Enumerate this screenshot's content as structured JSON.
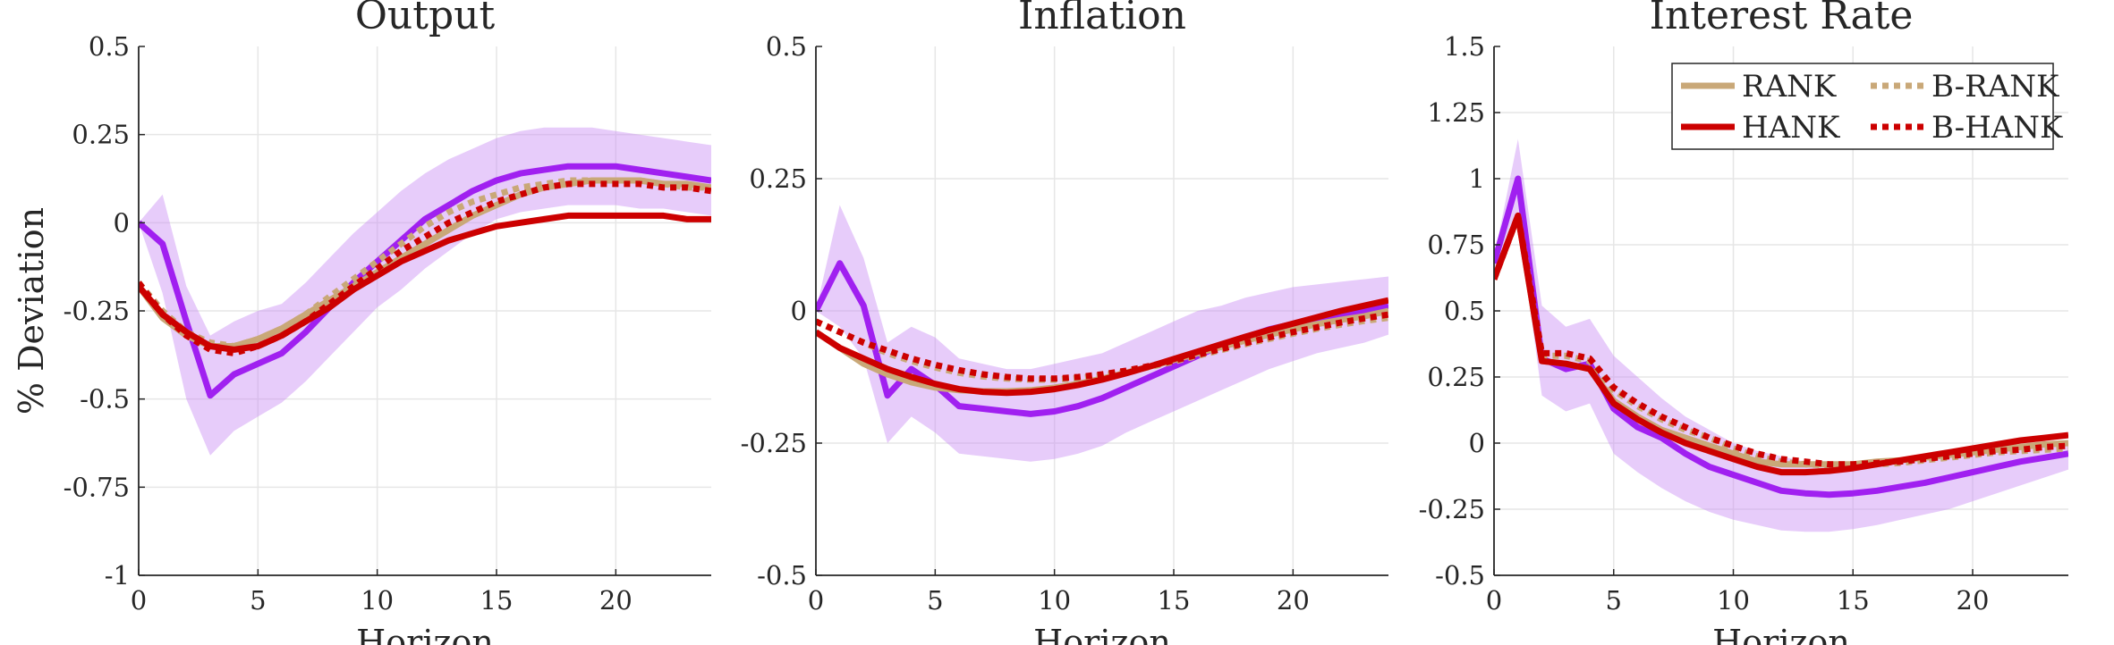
{
  "chart_data": [
    {
      "type": "line",
      "title": "Output",
      "xlabel": "Horizon",
      "ylabel": "% Deviation",
      "xlim": [
        0,
        24
      ],
      "ylim": [
        -1,
        0.5
      ],
      "xticks": [
        0,
        5,
        10,
        15,
        20
      ],
      "xtick_labels": [
        "0",
        "5",
        "10",
        "15",
        "20"
      ],
      "yticks": [
        -1,
        -0.75,
        -0.5,
        -0.25,
        0,
        0.25,
        0.5
      ],
      "ytick_labels": [
        "-1",
        "-0.75",
        "-0.5",
        "-0.25",
        "0",
        "0.25",
        "0.5"
      ],
      "grid": true,
      "x": [
        0,
        1,
        2,
        3,
        4,
        5,
        6,
        7,
        8,
        9,
        10,
        11,
        12,
        13,
        14,
        15,
        16,
        17,
        18,
        19,
        20,
        21,
        22,
        23,
        24
      ],
      "series": [
        {
          "key": "empirical",
          "style": "solid",
          "color": "#a020f0",
          "values": [
            0,
            -0.06,
            -0.28,
            -0.49,
            -0.43,
            -0.4,
            -0.37,
            -0.31,
            -0.24,
            -0.17,
            -0.11,
            -0.05,
            0.01,
            0.05,
            0.09,
            0.12,
            0.14,
            0.15,
            0.16,
            0.16,
            0.16,
            0.15,
            0.14,
            0.13,
            0.12
          ]
        },
        {
          "key": "band",
          "type": "area",
          "color": "#c98ef5",
          "upper": [
            0,
            0.08,
            -0.18,
            -0.32,
            -0.28,
            -0.25,
            -0.23,
            -0.17,
            -0.1,
            -0.03,
            0.03,
            0.09,
            0.14,
            0.18,
            0.21,
            0.24,
            0.26,
            0.27,
            0.27,
            0.27,
            0.26,
            0.25,
            0.24,
            0.23,
            0.22
          ],
          "lower": [
            0,
            -0.2,
            -0.5,
            -0.66,
            -0.59,
            -0.55,
            -0.51,
            -0.45,
            -0.38,
            -0.31,
            -0.24,
            -0.19,
            -0.13,
            -0.08,
            -0.03,
            0.01,
            0.03,
            0.04,
            0.05,
            0.05,
            0.05,
            0.04,
            0.04,
            0.03,
            0.02
          ]
        },
        {
          "name": "RANK",
          "style": "solid",
          "color": "#c9a878",
          "values": [
            -0.18,
            -0.27,
            -0.32,
            -0.35,
            -0.35,
            -0.33,
            -0.3,
            -0.26,
            -0.22,
            -0.18,
            -0.14,
            -0.1,
            -0.06,
            -0.02,
            0.02,
            0.05,
            0.08,
            0.1,
            0.11,
            0.12,
            0.12,
            0.12,
            0.11,
            0.11,
            0.1
          ]
        },
        {
          "name": "B-RANK",
          "style": "dotted",
          "color": "#c9a878",
          "values": [
            -0.17,
            -0.25,
            -0.31,
            -0.34,
            -0.35,
            -0.33,
            -0.3,
            -0.26,
            -0.21,
            -0.16,
            -0.11,
            -0.06,
            -0.01,
            0.03,
            0.06,
            0.08,
            0.1,
            0.11,
            0.12,
            0.12,
            0.12,
            0.12,
            0.11,
            0.1,
            0.1
          ]
        },
        {
          "name": "HANK",
          "style": "solid",
          "color": "#cc0000",
          "values": [
            -0.18,
            -0.26,
            -0.31,
            -0.35,
            -0.36,
            -0.35,
            -0.32,
            -0.28,
            -0.24,
            -0.19,
            -0.15,
            -0.11,
            -0.08,
            -0.05,
            -0.03,
            -0.01,
            0,
            0.01,
            0.02,
            0.02,
            0.02,
            0.02,
            0.02,
            0.01,
            0.01
          ]
        },
        {
          "name": "B-HANK",
          "style": "dotted",
          "color": "#cc0000",
          "values": [
            -0.17,
            -0.26,
            -0.32,
            -0.36,
            -0.37,
            -0.35,
            -0.32,
            -0.28,
            -0.23,
            -0.18,
            -0.13,
            -0.08,
            -0.04,
            0,
            0.03,
            0.06,
            0.08,
            0.1,
            0.11,
            0.11,
            0.11,
            0.11,
            0.1,
            0.1,
            0.09
          ]
        }
      ]
    },
    {
      "type": "line",
      "title": "Inflation",
      "xlabel": "Horizon",
      "ylabel": "",
      "xlim": [
        0,
        24
      ],
      "ylim": [
        -0.5,
        0.5
      ],
      "xticks": [
        0,
        5,
        10,
        15,
        20
      ],
      "xtick_labels": [
        "0",
        "5",
        "10",
        "15",
        "20"
      ],
      "yticks": [
        -0.5,
        -0.25,
        0,
        0.25,
        0.5
      ],
      "ytick_labels": [
        "-0.5",
        "-0.25",
        "0",
        "0.25",
        "0.5"
      ],
      "grid": true,
      "x": [
        0,
        1,
        2,
        3,
        4,
        5,
        6,
        7,
        8,
        9,
        10,
        11,
        12,
        13,
        14,
        15,
        16,
        17,
        18,
        19,
        20,
        21,
        22,
        23,
        24
      ],
      "series": [
        {
          "key": "empirical",
          "style": "solid",
          "color": "#a020f0",
          "values": [
            0,
            0.09,
            0.01,
            -0.16,
            -0.11,
            -0.14,
            -0.18,
            -0.185,
            -0.19,
            -0.195,
            -0.19,
            -0.18,
            -0.165,
            -0.145,
            -0.125,
            -0.105,
            -0.085,
            -0.065,
            -0.05,
            -0.035,
            -0.025,
            -0.015,
            -0.01,
            0,
            0.01
          ]
        },
        {
          "key": "band",
          "type": "area",
          "color": "#c98ef5",
          "upper": [
            0,
            0.2,
            0.1,
            -0.06,
            -0.03,
            -0.05,
            -0.09,
            -0.1,
            -0.11,
            -0.11,
            -0.1,
            -0.09,
            -0.08,
            -0.06,
            -0.04,
            -0.02,
            0,
            0.01,
            0.025,
            0.035,
            0.045,
            0.05,
            0.055,
            0.06,
            0.065
          ],
          "lower": [
            0,
            -0.03,
            -0.09,
            -0.25,
            -0.2,
            -0.23,
            -0.27,
            -0.275,
            -0.28,
            -0.285,
            -0.28,
            -0.27,
            -0.255,
            -0.23,
            -0.21,
            -0.19,
            -0.17,
            -0.15,
            -0.13,
            -0.11,
            -0.095,
            -0.08,
            -0.07,
            -0.06,
            -0.045
          ]
        },
        {
          "name": "RANK",
          "style": "solid",
          "color": "#c9a878",
          "values": [
            -0.04,
            -0.07,
            -0.1,
            -0.12,
            -0.135,
            -0.145,
            -0.15,
            -0.152,
            -0.152,
            -0.15,
            -0.145,
            -0.138,
            -0.128,
            -0.117,
            -0.105,
            -0.093,
            -0.08,
            -0.068,
            -0.056,
            -0.045,
            -0.035,
            -0.025,
            -0.017,
            -0.01,
            0
          ]
        },
        {
          "name": "B-RANK",
          "style": "dotted",
          "color": "#c9a878",
          "values": [
            -0.02,
            -0.04,
            -0.06,
            -0.08,
            -0.095,
            -0.107,
            -0.117,
            -0.124,
            -0.128,
            -0.13,
            -0.13,
            -0.127,
            -0.122,
            -0.115,
            -0.106,
            -0.096,
            -0.085,
            -0.074,
            -0.063,
            -0.053,
            -0.043,
            -0.034,
            -0.026,
            -0.019,
            -0.013
          ]
        },
        {
          "name": "HANK",
          "style": "solid",
          "color": "#cc0000",
          "values": [
            -0.04,
            -0.07,
            -0.09,
            -0.11,
            -0.125,
            -0.138,
            -0.148,
            -0.153,
            -0.155,
            -0.153,
            -0.148,
            -0.14,
            -0.13,
            -0.118,
            -0.105,
            -0.091,
            -0.077,
            -0.063,
            -0.049,
            -0.036,
            -0.024,
            -0.012,
            0,
            0.01,
            0.02
          ]
        },
        {
          "name": "B-HANK",
          "style": "dotted",
          "color": "#cc0000",
          "values": [
            -0.02,
            -0.04,
            -0.06,
            -0.075,
            -0.09,
            -0.102,
            -0.112,
            -0.12,
            -0.125,
            -0.128,
            -0.128,
            -0.125,
            -0.12,
            -0.113,
            -0.104,
            -0.094,
            -0.083,
            -0.072,
            -0.061,
            -0.05,
            -0.04,
            -0.031,
            -0.022,
            -0.014,
            -0.007
          ]
        }
      ]
    },
    {
      "type": "line",
      "title": "Interest Rate",
      "xlabel": "Horizon",
      "ylabel": "",
      "xlim": [
        0,
        24
      ],
      "ylim": [
        -0.5,
        1.5
      ],
      "xticks": [
        0,
        5,
        10,
        15,
        20
      ],
      "xtick_labels": [
        "0",
        "5",
        "10",
        "15",
        "20"
      ],
      "yticks": [
        -0.5,
        -0.25,
        0,
        0.25,
        0.5,
        0.75,
        1,
        1.25,
        1.5
      ],
      "ytick_labels": [
        "-0.5",
        "-0.25",
        "0",
        "0.25",
        "0.5",
        "0.75",
        "1",
        "1.25",
        "1.5"
      ],
      "grid": true,
      "x": [
        0,
        1,
        2,
        3,
        4,
        5,
        6,
        7,
        8,
        9,
        10,
        11,
        12,
        13,
        14,
        15,
        16,
        17,
        18,
        19,
        20,
        21,
        22,
        23,
        24
      ],
      "series": [
        {
          "key": "empirical",
          "style": "solid",
          "color": "#a020f0",
          "values": [
            0.68,
            1.0,
            0.32,
            0.28,
            0.3,
            0.13,
            0.06,
            0.02,
            -0.04,
            -0.09,
            -0.12,
            -0.15,
            -0.18,
            -0.19,
            -0.195,
            -0.19,
            -0.18,
            -0.165,
            -0.15,
            -0.13,
            -0.11,
            -0.09,
            -0.07,
            -0.055,
            -0.04
          ]
        },
        {
          "key": "band",
          "type": "area",
          "color": "#c98ef5",
          "upper": [
            0.7,
            1.15,
            0.52,
            0.44,
            0.47,
            0.33,
            0.25,
            0.17,
            0.1,
            0.05,
            0,
            -0.03,
            -0.05,
            -0.07,
            -0.075,
            -0.075,
            -0.07,
            -0.06,
            -0.05,
            -0.04,
            -0.03,
            -0.02,
            -0.01,
            0,
            0.01
          ],
          "lower": [
            0.66,
            0.85,
            0.18,
            0.12,
            0.15,
            -0.04,
            -0.11,
            -0.17,
            -0.22,
            -0.26,
            -0.29,
            -0.31,
            -0.33,
            -0.335,
            -0.335,
            -0.325,
            -0.31,
            -0.29,
            -0.27,
            -0.25,
            -0.22,
            -0.19,
            -0.16,
            -0.13,
            -0.1
          ]
        },
        {
          "name": "RANK",
          "style": "solid",
          "color": "#c9a878",
          "values": [
            0.62,
            0.86,
            0.31,
            0.3,
            0.28,
            0.16,
            0.1,
            0.05,
            0.02,
            -0.01,
            -0.04,
            -0.07,
            -0.08,
            -0.08,
            -0.08,
            -0.08,
            -0.07,
            -0.065,
            -0.055,
            -0.045,
            -0.035,
            -0.025,
            -0.015,
            -0.005,
            0
          ]
        },
        {
          "name": "B-RANK",
          "style": "dotted",
          "color": "#c9a878",
          "values": [
            0.62,
            0.86,
            0.33,
            0.33,
            0.31,
            0.2,
            0.14,
            0.09,
            0.05,
            0.02,
            -0.02,
            -0.05,
            -0.07,
            -0.08,
            -0.085,
            -0.085,
            -0.08,
            -0.075,
            -0.065,
            -0.055,
            -0.045,
            -0.035,
            -0.03,
            -0.025,
            -0.02
          ]
        },
        {
          "name": "HANK",
          "style": "solid",
          "color": "#cc0000",
          "values": [
            0.62,
            0.86,
            0.31,
            0.3,
            0.28,
            0.15,
            0.09,
            0.04,
            0,
            -0.03,
            -0.06,
            -0.09,
            -0.11,
            -0.11,
            -0.105,
            -0.095,
            -0.08,
            -0.065,
            -0.05,
            -0.035,
            -0.02,
            -0.005,
            0.01,
            0.02,
            0.03
          ]
        },
        {
          "name": "B-HANK",
          "style": "dotted",
          "color": "#cc0000",
          "values": [
            0.62,
            0.86,
            0.34,
            0.34,
            0.32,
            0.21,
            0.15,
            0.1,
            0.06,
            0.02,
            -0.01,
            -0.04,
            -0.06,
            -0.07,
            -0.08,
            -0.08,
            -0.075,
            -0.07,
            -0.06,
            -0.05,
            -0.04,
            -0.03,
            -0.025,
            -0.015,
            -0.01
          ]
        }
      ]
    }
  ],
  "legend": {
    "placement": "top-right",
    "entries": [
      {
        "label": "RANK",
        "style": "solid",
        "color": "#c9a878"
      },
      {
        "label": "B-RANK",
        "style": "dotted",
        "color": "#c9a878"
      },
      {
        "label": "HANK",
        "style": "solid",
        "color": "#cc0000"
      },
      {
        "label": "B-HANK",
        "style": "dotted",
        "color": "#cc0000"
      }
    ]
  }
}
